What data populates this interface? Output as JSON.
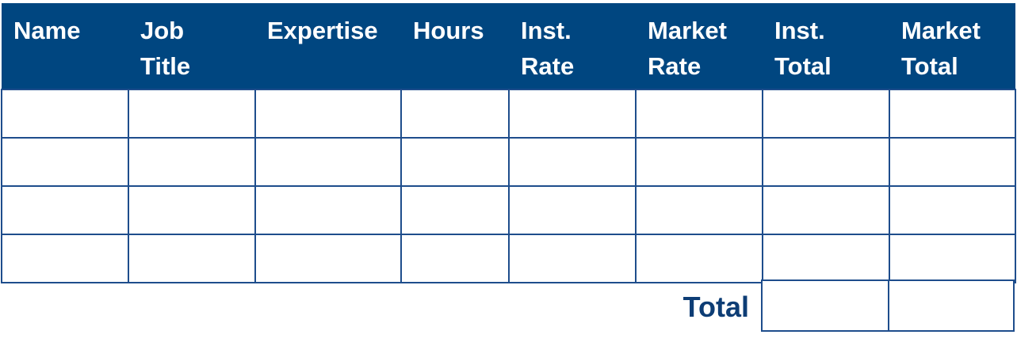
{
  "table": {
    "headers": [
      {
        "line1": "Name",
        "line2": ""
      },
      {
        "line1": "Job",
        "line2": "Title"
      },
      {
        "line1": "Expertise",
        "line2": ""
      },
      {
        "line1": "Hours",
        "line2": ""
      },
      {
        "line1": "Inst.",
        "line2": "Rate"
      },
      {
        "line1": "Market",
        "line2": "Rate"
      },
      {
        "line1": "Inst.",
        "line2": "Total"
      },
      {
        "line1": "Market",
        "line2": "Total"
      }
    ],
    "rows": [
      [
        "",
        "",
        "",
        "",
        "",
        "",
        "",
        ""
      ],
      [
        "",
        "",
        "",
        "",
        "",
        "",
        "",
        ""
      ],
      [
        "",
        "",
        "",
        "",
        "",
        "",
        "",
        ""
      ],
      [
        "",
        "",
        "",
        "",
        "",
        "",
        "",
        ""
      ]
    ]
  },
  "total": {
    "label": "Total",
    "inst_total": "",
    "market_total": ""
  },
  "colors": {
    "header_bg": "#004680",
    "header_text": "#ffffff",
    "border": "#1e4d8c",
    "total_label": "#0d3d75"
  }
}
